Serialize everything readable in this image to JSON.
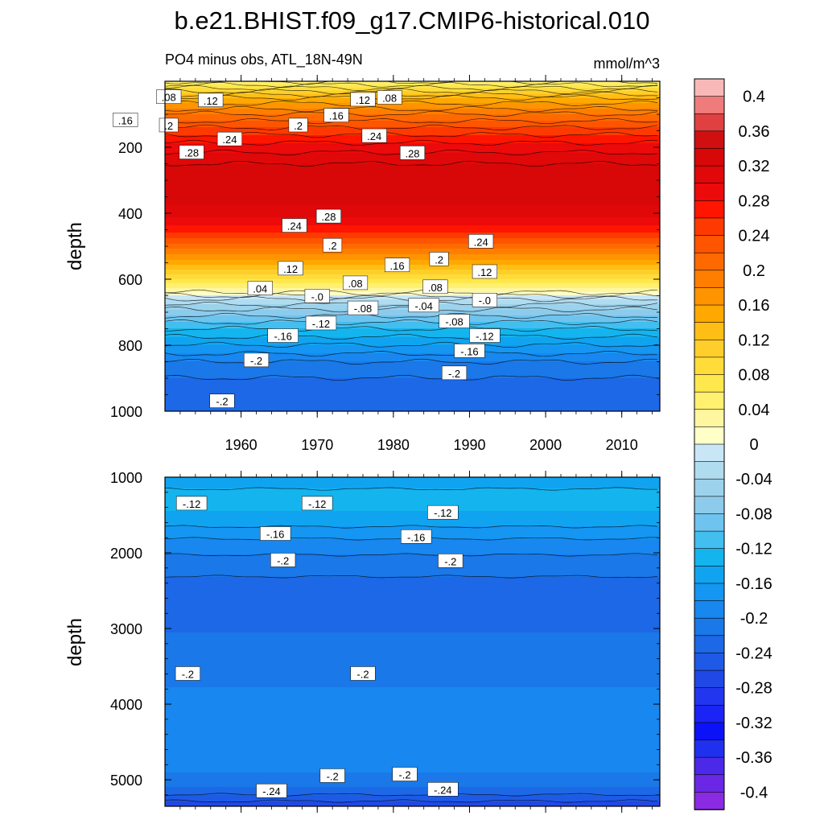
{
  "chart_data": [
    {
      "type": "heatmap",
      "title": "b.e21.BHIST.f09_g17.CMIP6-historical.010",
      "subtitle_left": "PO4 minus obs, ATL_18N-49N",
      "subtitle_right": "mmol/m^3",
      "xlabel": "",
      "ylabel": "depth",
      "xlim": [
        1950,
        2015
      ],
      "ylim": [
        1000,
        0
      ],
      "xticks": [
        1960,
        1970,
        1980,
        1990,
        2000,
        2010
      ],
      "xticklabels": [
        "1960",
        "1970",
        "1980",
        "1990",
        "2000",
        "2010"
      ],
      "yticks": [
        200,
        400,
        600,
        800,
        1000
      ],
      "yticklabels": [
        "200",
        "400",
        "600",
        "800",
        "1000"
      ],
      "profile": {
        "depth": [
          0,
          20,
          50,
          100,
          150,
          200,
          250,
          300,
          350,
          400,
          450,
          500,
          550,
          600,
          640,
          660,
          700,
          750,
          800,
          850,
          900,
          950,
          1000
        ],
        "value": [
          0.04,
          0.08,
          0.14,
          0.2,
          0.25,
          0.29,
          0.32,
          0.33,
          0.33,
          0.31,
          0.27,
          0.21,
          0.15,
          0.08,
          0.02,
          -0.02,
          -0.07,
          -0.12,
          -0.16,
          -0.2,
          -0.22,
          -0.23,
          -0.24
        ]
      },
      "contour_labels": [
        {
          "text": ".08",
          "x": 1950.5,
          "depth": 48
        },
        {
          "text": ".12",
          "x": 1956,
          "depth": 58
        },
        {
          "text": ".16",
          "x": 1944.8,
          "depth": 118
        },
        {
          "text": ".2",
          "x": 1950.5,
          "depth": 134
        },
        {
          "text": ".24",
          "x": 1958.5,
          "depth": 176
        },
        {
          "text": ".28",
          "x": 1953.5,
          "depth": 216
        },
        {
          "text": ".2",
          "x": 1967.5,
          "depth": 134
        },
        {
          "text": ".16",
          "x": 1972.5,
          "depth": 104
        },
        {
          "text": ".12",
          "x": 1976,
          "depth": 56
        },
        {
          "text": ".08",
          "x": 1979.5,
          "depth": 50
        },
        {
          "text": ".24",
          "x": 1977.5,
          "depth": 166
        },
        {
          "text": ".28",
          "x": 1982.5,
          "depth": 218
        },
        {
          "text": ".28",
          "x": 1971.5,
          "depth": 410
        },
        {
          "text": ".24",
          "x": 1967,
          "depth": 438
        },
        {
          "text": ".2",
          "x": 1972,
          "depth": 498
        },
        {
          "text": ".12",
          "x": 1966.5,
          "depth": 568
        },
        {
          "text": ".04",
          "x": 1962.5,
          "depth": 628
        },
        {
          "text": ".16",
          "x": 1980.5,
          "depth": 558
        },
        {
          "text": ".08",
          "x": 1975,
          "depth": 612
        },
        {
          "text": ".2",
          "x": 1986,
          "depth": 540
        },
        {
          "text": ".24",
          "x": 1991.5,
          "depth": 486
        },
        {
          "text": ".12",
          "x": 1992,
          "depth": 578
        },
        {
          "text": ".08",
          "x": 1985.5,
          "depth": 624
        },
        {
          "text": "-.0",
          "x": 1970,
          "depth": 652
        },
        {
          "text": "-.04",
          "x": 1984,
          "depth": 680
        },
        {
          "text": "-.08",
          "x": 1976,
          "depth": 688
        },
        {
          "text": "-.08",
          "x": 1988,
          "depth": 728
        },
        {
          "text": "-.0",
          "x": 1992,
          "depth": 664
        },
        {
          "text": "-.12",
          "x": 1970.5,
          "depth": 734
        },
        {
          "text": "-.16",
          "x": 1965.5,
          "depth": 772
        },
        {
          "text": "-.12",
          "x": 1992,
          "depth": 772
        },
        {
          "text": "-.16",
          "x": 1990,
          "depth": 818
        },
        {
          "text": "-.2",
          "x": 1962,
          "depth": 846
        },
        {
          "text": "-.2",
          "x": 1988,
          "depth": 885
        },
        {
          "text": "-.2",
          "x": 1957.5,
          "depth": 970
        }
      ]
    },
    {
      "type": "heatmap",
      "xlabel": "",
      "ylabel": "depth",
      "xlim": [
        1950,
        2015
      ],
      "ylim": [
        5350,
        1000
      ],
      "xticks": [
        1960,
        1970,
        1980,
        1990,
        2000,
        2010
      ],
      "yticks": [
        1000,
        2000,
        3000,
        4000,
        5000
      ],
      "yticklabels": [
        "1000",
        "2000",
        "3000",
        "4000",
        "5000"
      ],
      "profile": {
        "depth": [
          1000,
          1150,
          1300,
          1450,
          1650,
          1900,
          2150,
          2400,
          2900,
          3200,
          3600,
          3950,
          4400,
          4700,
          4900,
          5100,
          5250,
          5350
        ],
        "value": [
          -0.15,
          -0.14,
          -0.135,
          -0.14,
          -0.16,
          -0.19,
          -0.21,
          -0.225,
          -0.225,
          -0.215,
          -0.205,
          -0.195,
          -0.19,
          -0.195,
          -0.2,
          -0.22,
          -0.25,
          -0.28
        ]
      },
      "contour_labels": [
        {
          "text": "-.12",
          "x": 1953.5,
          "depth": 1350
        },
        {
          "text": "-.12",
          "x": 1970,
          "depth": 1350
        },
        {
          "text": "-.12",
          "x": 1986.5,
          "depth": 1470
        },
        {
          "text": "-.16",
          "x": 1964.5,
          "depth": 1750
        },
        {
          "text": "-.16",
          "x": 1983,
          "depth": 1790
        },
        {
          "text": "-.2",
          "x": 1965.5,
          "depth": 2100
        },
        {
          "text": "-.2",
          "x": 1987.5,
          "depth": 2110
        },
        {
          "text": "-.2",
          "x": 1953,
          "depth": 3600
        },
        {
          "text": "-.2",
          "x": 1976,
          "depth": 3600
        },
        {
          "text": "-.2",
          "x": 1972,
          "depth": 4950
        },
        {
          "text": "-.2",
          "x": 1981.5,
          "depth": 4930
        },
        {
          "text": "-.24",
          "x": 1964,
          "depth": 5150
        },
        {
          "text": "-.24",
          "x": 1986.5,
          "depth": 5130
        }
      ]
    }
  ],
  "colorbar": {
    "levels": [
      0.44,
      0.4,
      0.38,
      0.36,
      0.34,
      0.32,
      0.3,
      0.28,
      0.26,
      0.24,
      0.22,
      0.2,
      0.18,
      0.16,
      0.14,
      0.12,
      0.1,
      0.08,
      0.06,
      0.04,
      0.02,
      0,
      -0.02,
      -0.04,
      -0.06,
      -0.08,
      -0.1,
      -0.12,
      -0.14,
      -0.16,
      -0.18,
      -0.2,
      -0.22,
      -0.24,
      -0.26,
      -0.28,
      -0.3,
      -0.32,
      -0.34,
      -0.36,
      -0.38,
      -0.4,
      -0.44
    ],
    "colors": [
      "#f9b8b8",
      "#f07b7b",
      "#e04040",
      "#d01010",
      "#d80808",
      "#e00808",
      "#ec0a0a",
      "#ff1500",
      "#ff3a00",
      "#ff5400",
      "#ff6a00",
      "#ff7e00",
      "#ff9400",
      "#ffa800",
      "#ffbe15",
      "#ffce2a",
      "#ffdc3a",
      "#ffe84d",
      "#fff070",
      "#fff6a0",
      "#ffffc8",
      "#c8e6f6",
      "#b0dcf0",
      "#9cd2ec",
      "#8ccbec",
      "#6ec4ef",
      "#42beef",
      "#14b4ef",
      "#10a4f0",
      "#1496f2",
      "#1887f0",
      "#1a78e8",
      "#1c68e6",
      "#1e5ae6",
      "#2048e6",
      "#2236f0",
      "#1b24f5",
      "#0c12f8",
      "#2030ef",
      "#4c28e8",
      "#6a28e4",
      "#8a2ae2"
    ],
    "ticks": [
      "0.4",
      "0.36",
      "0.32",
      "0.28",
      "0.24",
      "0.2",
      "0.16",
      "0.12",
      "0.08",
      "0.04",
      "0",
      "-0.04",
      "-0.08",
      "-0.12",
      "-0.16",
      "-0.2",
      "-0.24",
      "-0.28",
      "-0.32",
      "-0.36",
      "-0.4"
    ]
  }
}
